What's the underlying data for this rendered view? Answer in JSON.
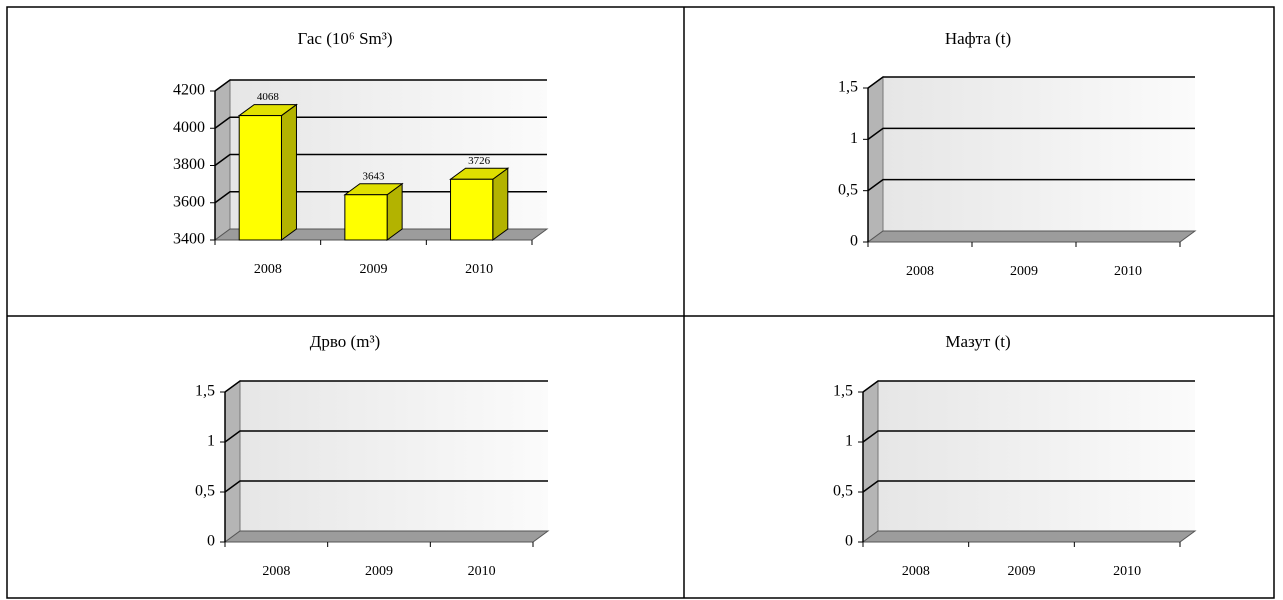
{
  "chart_data": [
    {
      "type": "bar",
      "title": "Гас (10⁶ Sm³)",
      "categories": [
        "2008",
        "2009",
        "2010"
      ],
      "values": [
        4068,
        3643,
        3726
      ],
      "color": "#ffff00",
      "ylim": [
        3400,
        4200
      ],
      "yticks": [
        3400,
        3600,
        3800,
        4000,
        4200
      ],
      "grid": true
    },
    {
      "type": "bar",
      "title": "Нафта (t)",
      "categories": [
        "2008",
        "2009",
        "2010"
      ],
      "values": [
        null,
        null,
        null
      ],
      "ylim": [
        0,
        1.5
      ],
      "yticks": [
        0,
        {
          "value": 0.5,
          "label": "0,5"
        },
        1,
        {
          "value": 1.5,
          "label": "1,5"
        }
      ],
      "grid": true
    },
    {
      "type": "bar",
      "title": "Дрво (m³)",
      "categories": [
        "2008",
        "2009",
        "2010"
      ],
      "values": [
        null,
        null,
        null
      ],
      "ylim": [
        0,
        1.5
      ],
      "yticks": [
        0,
        {
          "value": 0.5,
          "label": "0,5"
        },
        1,
        {
          "value": 1.5,
          "label": "1,5"
        }
      ],
      "grid": true
    },
    {
      "type": "bar",
      "title": "Мазут (t)",
      "categories": [
        "2008",
        "2009",
        "2010"
      ],
      "values": [
        null,
        null,
        null
      ],
      "ylim": [
        0,
        1.5
      ],
      "yticks": [
        0,
        {
          "value": 0.5,
          "label": "0,5"
        },
        1,
        {
          "value": 1.5,
          "label": "1,5"
        }
      ],
      "grid": true
    }
  ]
}
